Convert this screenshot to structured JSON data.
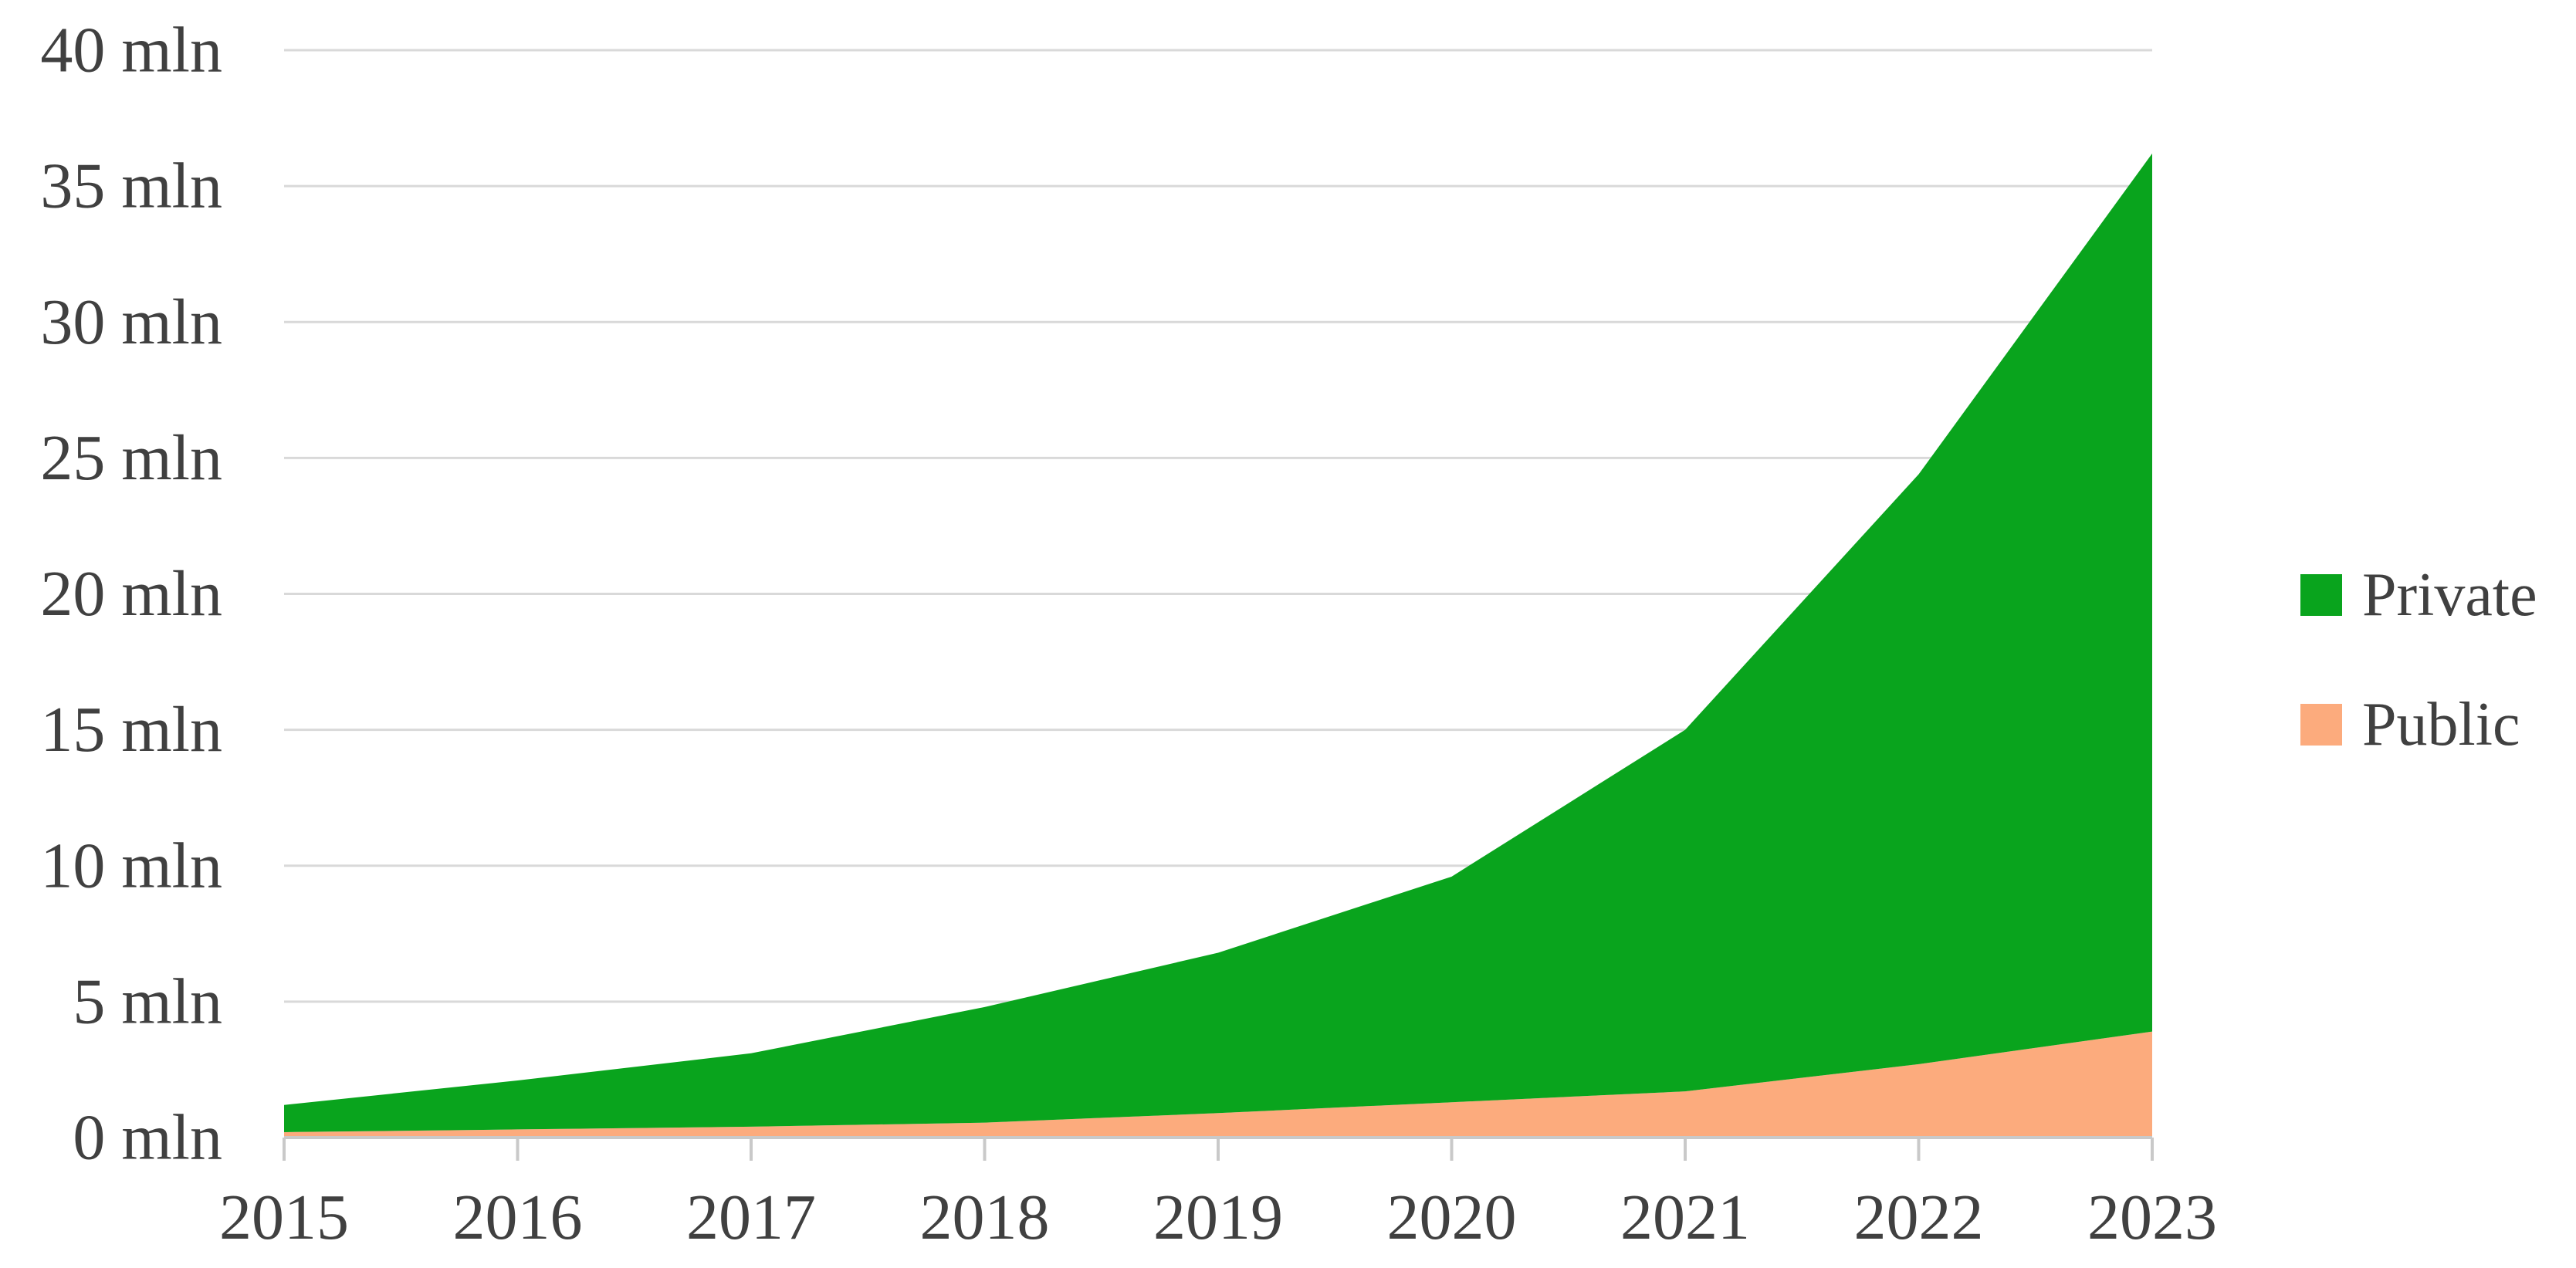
{
  "chart_data": {
    "type": "area",
    "stacked": true,
    "title": "",
    "xlabel": "",
    "ylabel": "",
    "unit": "mln",
    "x_labels": [
      "2015",
      "2016",
      "2017",
      "2018",
      "2019",
      "2020",
      "2021",
      "2022",
      "2023"
    ],
    "series": [
      {
        "name": "Public",
        "color": "#FCAB7D",
        "values": [
          0.2,
          0.3,
          0.4,
          0.55,
          0.9,
          1.3,
          1.7,
          2.7,
          3.9
        ]
      },
      {
        "name": "Private",
        "color": "#09A41D",
        "values": [
          1.0,
          1.8,
          2.7,
          4.25,
          5.9,
          8.3,
          13.3,
          21.7,
          32.3
        ]
      }
    ],
    "stack_order_bottom_to_top": [
      "Public",
      "Private"
    ],
    "stacked_totals": [
      1.2,
      2.1,
      3.1,
      4.8,
      6.8,
      9.6,
      15.0,
      24.4,
      36.2
    ],
    "ylim": [
      0,
      40
    ],
    "y_tick_step": 5,
    "y_tick_labels": [
      "0 mln",
      "5 mln",
      "10 mln",
      "15 mln",
      "20 mln",
      "25 mln",
      "30 mln",
      "35 mln",
      "40 mln"
    ],
    "grid": "horizontal",
    "legend_position": "right"
  },
  "legend": {
    "items": [
      {
        "label": "Private",
        "color": "#09A41D"
      },
      {
        "label": "Public",
        "color": "#FCAB7D"
      }
    ]
  },
  "colors": {
    "background": "#FFFFFF",
    "gridline": "#D9D9D9",
    "axis_line": "#C9C9C9",
    "tick_mark": "#C9C9C9",
    "label_text": "#404040"
  }
}
